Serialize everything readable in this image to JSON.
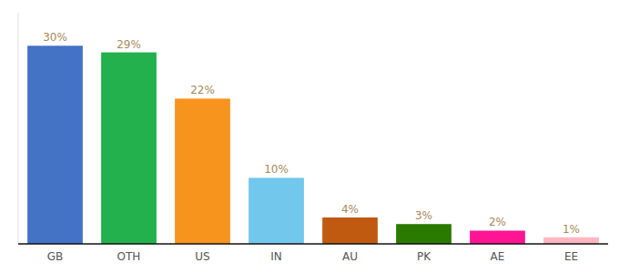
{
  "chart_data": {
    "type": "bar",
    "categories": [
      "GB",
      "OTH",
      "US",
      "IN",
      "AU",
      "PK",
      "AE",
      "EE"
    ],
    "values": [
      30,
      29,
      22,
      10,
      4,
      3,
      2,
      1
    ],
    "value_labels": [
      "30%",
      "29%",
      "22%",
      "10%",
      "4%",
      "3%",
      "2%",
      "1%"
    ],
    "colors": [
      "#4472c4",
      "#22b14c",
      "#f7941d",
      "#71c7ec",
      "#c05a10",
      "#2a7a00",
      "#ff1493",
      "#ffb6c1"
    ],
    "ylim": [
      0,
      35
    ],
    "data_labels": true,
    "tick_labels": "x",
    "grid": false
  }
}
